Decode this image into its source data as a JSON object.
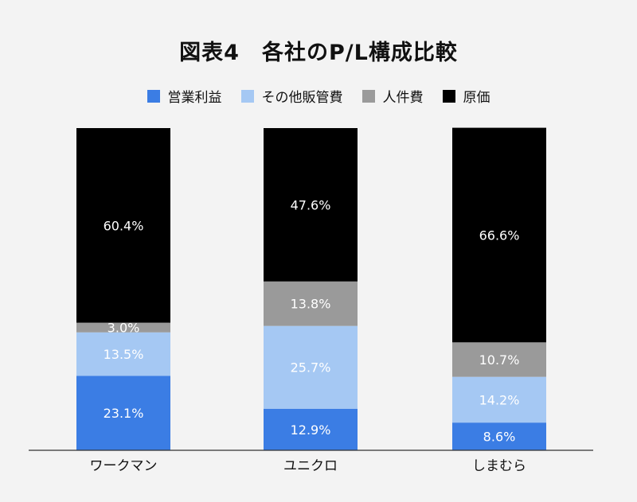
{
  "chart_data": {
    "type": "bar",
    "stacked": true,
    "title": "図表4　各社のP/L構成比較",
    "categories": [
      "ワークマン",
      "ユニクロ",
      "しまむら"
    ],
    "series": [
      {
        "name": "営業利益",
        "color": "#3b7de4",
        "values": [
          23.1,
          12.9,
          8.6
        ]
      },
      {
        "name": "その他販管費",
        "color": "#a5c8f3",
        "values": [
          13.5,
          25.7,
          14.2
        ]
      },
      {
        "name": "人件費",
        "color": "#9a9a9a",
        "values": [
          3.0,
          13.8,
          10.7
        ]
      },
      {
        "name": "原価",
        "color": "#000000",
        "values": [
          60.4,
          47.6,
          66.6
        ]
      }
    ],
    "data_labels": [
      [
        "23.1%",
        "12.9%",
        "8.6%"
      ],
      [
        "13.5%",
        "25.7%",
        "14.2%"
      ],
      [
        "3.0%",
        "13.8%",
        "10.7%"
      ],
      [
        "60.4%",
        "47.6%",
        "66.6%"
      ]
    ],
    "ylim": [
      0,
      100
    ],
    "grid": false,
    "legend_position": "top-center",
    "xlabel": "",
    "ylabel": ""
  }
}
